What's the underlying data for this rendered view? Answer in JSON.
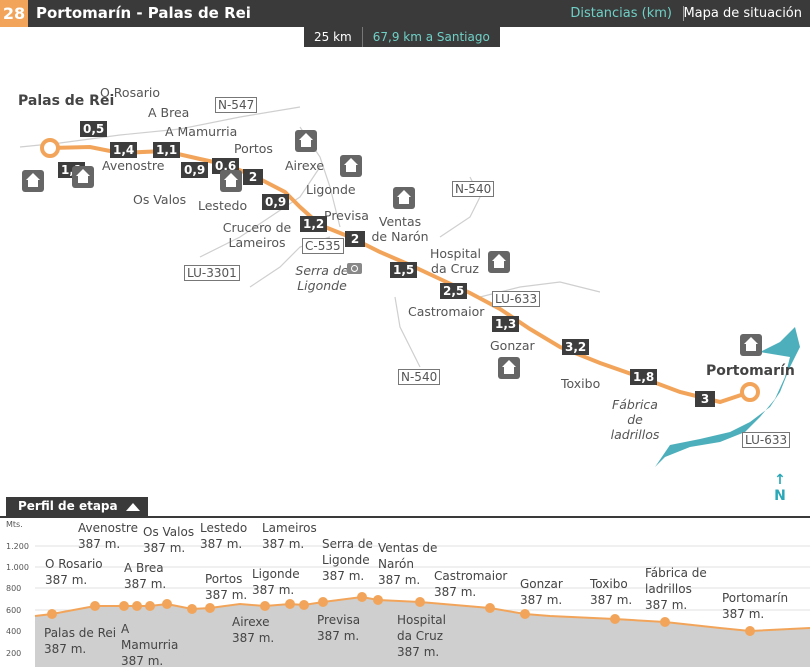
{
  "header": {
    "stage_number": "28",
    "title": "Portomarín - Palas de Rei",
    "distances_link": "Distancias (km)",
    "map_link": "Mapa de situación"
  },
  "distance_bar": {
    "total": "25 km",
    "to_santiago": "67,9 km a Santiago"
  },
  "map": {
    "places": {
      "palas": "Palas de Rei",
      "rosario": "O Rosario",
      "abrea": "A Brea",
      "amamurria": "A Mamurria",
      "avenostre": "Avenostre",
      "osvalos": "Os Valos",
      "lestedo": "Lestedo",
      "portos": "Portos",
      "airexe": "Airexe",
      "ligonde": "Ligonde",
      "lameiros": "Crucero de Lameiros",
      "previsa": "Previsa",
      "ventas": "Ventas de Narón",
      "serra": "Serra de Ligonde",
      "hospital": "Hospital da Cruz",
      "castromaior": "Castromaior",
      "gonzar": "Gonzar",
      "toxibo": "Toxibo",
      "fabrica": "Fábrica de ladrillos",
      "portomarin": "Portomarín"
    },
    "roads": {
      "n547": "N-547",
      "n540a": "N-540",
      "c535": "C-535",
      "lu3301": "LU-3301",
      "lu633a": "LU-633",
      "n540b": "N-540",
      "lu633b": "LU-633"
    },
    "distances": [
      "0,5",
      "1,4",
      "1,1",
      "1,1",
      "0,9",
      "0,6",
      "2",
      "0,9",
      "1,2",
      "2",
      "1,5",
      "2,5",
      "1,3",
      "3,2",
      "1,8",
      "3"
    ],
    "north": "N"
  },
  "profile": {
    "tab_label": "Perfil de etapa",
    "y_unit": "Mts.",
    "y_ticks": [
      "1.200",
      "1.000",
      "800",
      "600",
      "400",
      "200"
    ],
    "points": [
      {
        "name": "Palas de Rei",
        "alt": "387 m."
      },
      {
        "name": "O Rosario",
        "alt": "387 m."
      },
      {
        "name": "Avenostre",
        "alt": "387 m."
      },
      {
        "name": "A Brea",
        "alt": "387 m."
      },
      {
        "name": "A Mamurria",
        "alt": "387 m."
      },
      {
        "name": "Os Valos",
        "alt": "387 m."
      },
      {
        "name": "Lestedo",
        "alt": "387 m."
      },
      {
        "name": "Portos",
        "alt": "387 m."
      },
      {
        "name": "Airexe",
        "alt": "387 m."
      },
      {
        "name": "Ligonde",
        "alt": "387 m."
      },
      {
        "name": "Lameiros",
        "alt": "387 m."
      },
      {
        "name": "Previsa",
        "alt": "387 m."
      },
      {
        "name": "Serra de Ligonde",
        "alt": "387 m."
      },
      {
        "name": "Ventas de Narón",
        "alt": "387 m."
      },
      {
        "name": "Hospital da Cruz",
        "alt": "387 m."
      },
      {
        "name": "Castromaior",
        "alt": "387 m."
      },
      {
        "name": "Gonzar",
        "alt": "387 m."
      },
      {
        "name": "Toxibo",
        "alt": "387 m."
      },
      {
        "name": "Fábrica de ladrillos",
        "alt": "387 m."
      },
      {
        "name": "Portomarín",
        "alt": "387 m."
      }
    ]
  },
  "colors": {
    "route": "#f2a55a",
    "header": "#3a3a3a",
    "accent": "#6fd0c6",
    "river": "#3aa6b4"
  }
}
